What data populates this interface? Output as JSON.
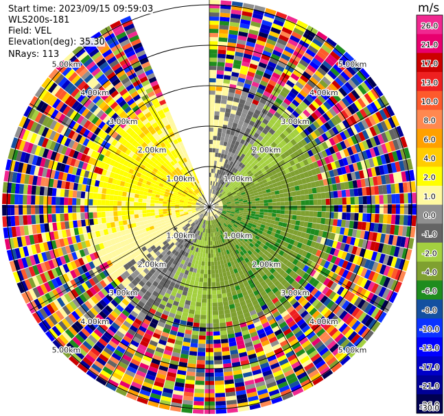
{
  "info": {
    "start_time": "Start time: 2023/09/15 09:59:03",
    "instrument": "WLS200s-181",
    "field": "Field: VEL",
    "elevation": "Elevation(deg): 35.30",
    "nrays": "NRays: 113"
  },
  "chart_data": {
    "type": "heatmap",
    "projection": "polar",
    "field": "VEL",
    "units": "m/s",
    "nrays": 113,
    "elevation_deg": 35.3,
    "ring_labels": [
      "1.00km",
      "2.00km",
      "3.00km",
      "4.00km",
      "5.00km"
    ],
    "blank_sector_deg": [
      337,
      360
    ],
    "colorbar": {
      "label": "m/s",
      "ticks": [
        "26.0",
        "21.0",
        "17.0",
        "13.0",
        "10.0",
        "8.0",
        "6.0",
        "4.0",
        "2.0",
        "1.0",
        "0.0",
        "-1.0",
        "-2.0",
        "-4.0",
        "-6.0",
        "-8.0",
        "-10.0",
        "-13.0",
        "-17.0",
        "-21.0",
        "-26.0",
        "-30.0"
      ],
      "colors": [
        "#f02890",
        "#e8006e",
        "#cc0000",
        "#ee2020",
        "#fd5a2c",
        "#ff8850",
        "#ffa000",
        "#ffcc00",
        "#ffff00",
        "#fff9a0",
        "#909090",
        "#646464",
        "#a4d040",
        "#7fa030",
        "#1e8c1e",
        "#1450a0",
        "#0a32ff",
        "#0000ff",
        "#0000c8",
        "#000096",
        "#000050"
      ]
    },
    "velocity_pattern": "positive (yellow/orange) to the west and north, negative (green) to the east and south, grey near-zero band, noisy multicolour beyond ~2.5 km"
  }
}
